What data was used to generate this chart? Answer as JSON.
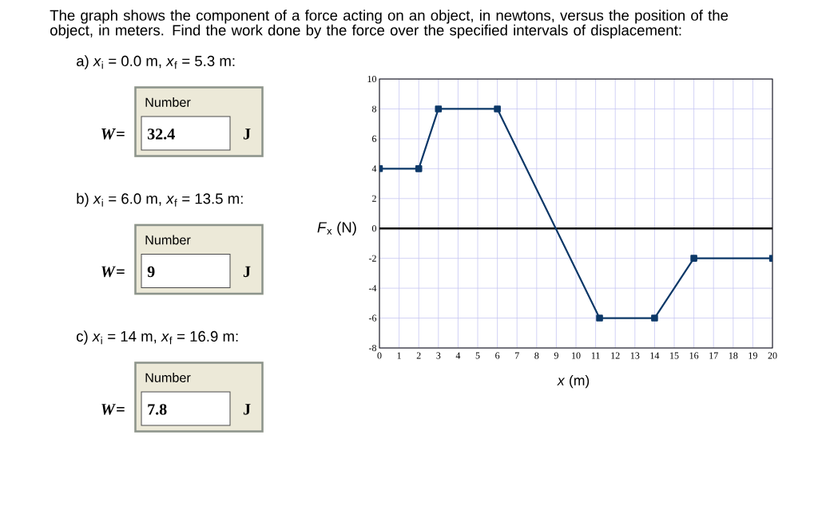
{
  "chart_data": {
    "type": "line",
    "title": "The graph shows the component of a force acting on an object, in newtons, versus the position of the object, in meters. Find the work done by the force over the specified intervals of displacement:",
    "xlabel": "*x* (m)",
    "ylabel": "*F*$_{x}$ (N)",
    "x": [
      0,
      2,
      3,
      6,
      11.2,
      14,
      16,
      20
    ],
    "series": [
      {
        "color": "#0c3868",
        "values": [
          4,
          4,
          8,
          8,
          -6,
          -6,
          -2,
          -2
        ]
      }
    ],
    "xlim": [
      0,
      20
    ],
    "ylim": [
      -8,
      10
    ],
    "xticks": [
      0,
      1,
      2,
      3,
      4,
      5,
      6,
      7,
      8,
      9,
      10,
      11,
      12,
      13,
      14,
      15,
      16,
      17,
      18,
      19,
      20
    ],
    "yticks": [
      -8,
      -6,
      -4,
      -2,
      0,
      2,
      4,
      6,
      8,
      10
    ],
    "grid": true,
    "marker": "square",
    "ref_lines": [
      {
        "axis": "y",
        "value": 0,
        "color": "#000000"
      }
    ],
    "annotations": [
      "a) *x*$_{i}$ = 0.0 m, *x*$_{f}$ = 5.3 m:",
      "Number",
      "*W*=",
      "32.4",
      "J",
      "b) *x*$_{i}$ = 6.0 m, *x*$_{f}$ = 13.5 m:",
      "Number",
      "*W*=",
      "9",
      "J",
      "c) *x*$_{i}$ = 14 m, *x*$_{f}$ = 16.9 m:",
      "Number",
      "*W*=",
      "7.8",
      "J"
    ]
  }
}
